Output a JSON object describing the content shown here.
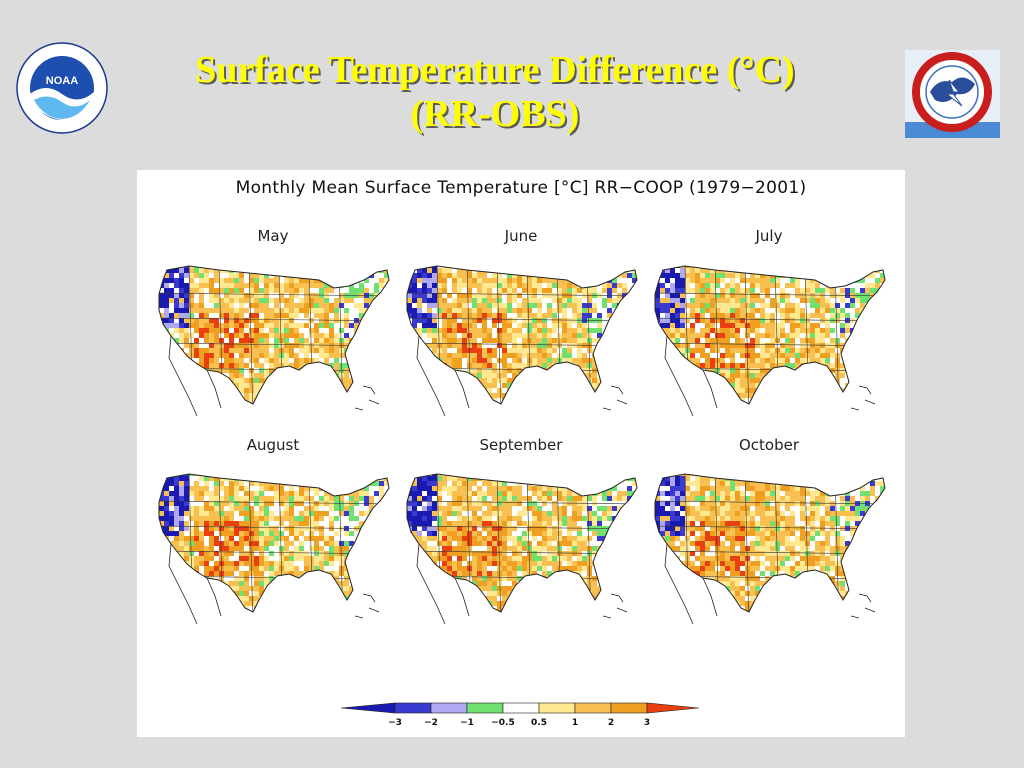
{
  "slide": {
    "title_line1": "Surface Temperature Difference (°C)",
    "title_line2": "(RR-OBS)"
  },
  "logos": {
    "left": "noaa-logo",
    "left_text": "NOAA",
    "right": "national-weather-service-logo"
  },
  "figure": {
    "title": "Monthly Mean Surface Temperature [°C] RR−COOP (1979−2001)",
    "panels": [
      {
        "label": "May"
      },
      {
        "label": "June"
      },
      {
        "label": "July"
      },
      {
        "label": "August"
      },
      {
        "label": "September"
      },
      {
        "label": "October"
      }
    ],
    "colorbar": {
      "ticks": [
        "−3",
        "−2",
        "−1",
        "−0.5",
        "0.5",
        "1",
        "2",
        "3"
      ],
      "colors": [
        "#1a1ab0",
        "#3a3ad0",
        "#b0a8f0",
        "#70e070",
        "#ffffff",
        "#ffe890",
        "#f8c050",
        "#f0a020",
        "#e84010"
      ]
    }
  }
}
